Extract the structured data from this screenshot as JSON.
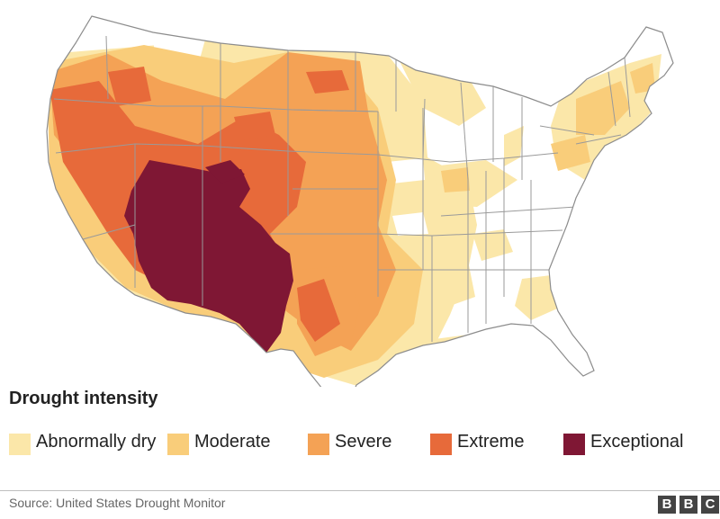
{
  "legend": {
    "title": "Drought intensity",
    "items": [
      {
        "label": "Abnormally dry",
        "color": "#fbe7a9"
      },
      {
        "label": "Moderate",
        "color": "#f9cd7a"
      },
      {
        "label": "Severe",
        "color": "#f4a255"
      },
      {
        "label": "Extreme",
        "color": "#e76a3a"
      },
      {
        "label": "Exceptional",
        "color": "#7f1734"
      }
    ]
  },
  "source": "Source: United States Drought Monitor",
  "logo": {
    "letters": [
      "B",
      "B",
      "C"
    ]
  },
  "map": {
    "land_color": "#ffffff",
    "border_color": "#9a9a9a",
    "region": "United States"
  }
}
